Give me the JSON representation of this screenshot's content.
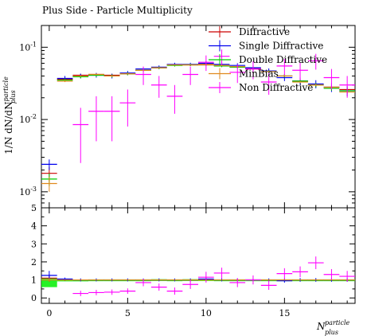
{
  "chart_data": [
    {
      "type": "line",
      "panel": "main",
      "title": "Plus Side - Particle Multiplicity",
      "ylabel": "1/N dN/dN_plus^particle",
      "xlabel": "",
      "yscale": "log",
      "xlim": [
        -0.5,
        19.5
      ],
      "ylim": [
        0.0006,
        0.2
      ],
      "y_ticks": [
        0.001,
        0.01,
        0.1
      ],
      "y_tick_labels": [
        "10^-3",
        "10^-2",
        "10^-1"
      ],
      "legend_position": "top-right",
      "x": [
        0,
        1,
        2,
        3,
        4,
        5,
        6,
        7,
        8,
        9,
        10,
        11,
        12,
        13,
        14,
        15,
        16,
        17,
        18,
        19
      ],
      "series": [
        {
          "name": "Diffractive",
          "color": "#cc0000",
          "values": [
            0.0018,
            0.036,
            0.041,
            0.042,
            0.041,
            0.043,
            0.048,
            0.052,
            0.057,
            0.057,
            0.058,
            0.056,
            0.054,
            0.051,
            0.047,
            0.04,
            0.034,
            0.03,
            0.028,
            0.026
          ],
          "errors": [
            0.0004,
            0.002,
            0.002,
            0.002,
            0.002,
            0.002,
            0.002,
            0.002,
            0.002,
            0.002,
            0.002,
            0.002,
            0.002,
            0.002,
            0.002,
            0.002,
            0.002,
            0.002,
            0.002,
            0.002
          ]
        },
        {
          "name": "Single Diffractive",
          "color": "#0000ee",
          "values": [
            0.0024,
            0.037,
            0.04,
            0.041,
            0.04,
            0.044,
            0.05,
            0.053,
            0.058,
            0.058,
            0.06,
            0.058,
            0.056,
            0.052,
            0.047,
            0.038,
            0.034,
            0.031,
            0.028,
            0.025
          ],
          "errors": [
            0.0004,
            0.003,
            0.003,
            0.003,
            0.003,
            0.003,
            0.003,
            0.003,
            0.003,
            0.003,
            0.004,
            0.004,
            0.004,
            0.004,
            0.004,
            0.004,
            0.004,
            0.004,
            0.004,
            0.004
          ]
        },
        {
          "name": "Double Diffractive",
          "color": "#00cc00",
          "values": [
            0.0015,
            0.035,
            0.039,
            0.041,
            0.04,
            0.043,
            0.048,
            0.052,
            0.056,
            0.057,
            0.057,
            0.055,
            0.053,
            0.05,
            0.046,
            0.04,
            0.034,
            0.03,
            0.027,
            0.025
          ],
          "errors": [
            0.0003,
            0.002,
            0.002,
            0.002,
            0.002,
            0.002,
            0.002,
            0.002,
            0.002,
            0.002,
            0.002,
            0.002,
            0.002,
            0.002,
            0.002,
            0.002,
            0.002,
            0.002,
            0.002,
            0.002
          ]
        },
        {
          "name": "MinBias",
          "color": "#e08a1e",
          "values": [
            0.0013,
            0.034,
            0.04,
            0.042,
            0.04,
            0.043,
            0.048,
            0.052,
            0.057,
            0.057,
            0.057,
            0.056,
            0.054,
            0.05,
            0.046,
            0.04,
            0.033,
            0.03,
            0.028,
            0.024
          ],
          "errors": [
            0.0003,
            0.001,
            0.001,
            0.001,
            0.001,
            0.001,
            0.001,
            0.001,
            0.001,
            0.001,
            0.001,
            0.001,
            0.001,
            0.001,
            0.001,
            0.001,
            0.001,
            0.001,
            0.001,
            0.001
          ]
        },
        {
          "name": "Non Diffractive",
          "color": "#ff00ff",
          "values": [
            null,
            null,
            0.0085,
            0.013,
            0.013,
            0.017,
            0.042,
            0.03,
            0.021,
            0.042,
            0.062,
            0.075,
            0.045,
            0.05,
            0.033,
            0.055,
            0.048,
            0.065,
            0.038,
            0.03
          ],
          "errors": [
            null,
            null,
            0.006,
            0.008,
            0.008,
            0.009,
            0.012,
            0.01,
            0.009,
            0.012,
            0.015,
            0.018,
            0.013,
            0.014,
            0.011,
            0.014,
            0.013,
            0.016,
            0.012,
            0.01
          ]
        }
      ]
    },
    {
      "type": "line",
      "panel": "ratio",
      "xlabel": "N_plus^particle",
      "ylabel": "",
      "xlim": [
        -0.5,
        19.5
      ],
      "ylim": [
        -0.3,
        5.0
      ],
      "x_ticks": [
        0,
        5,
        10,
        15
      ],
      "y_ticks": [
        0,
        1,
        2,
        3,
        4,
        5
      ],
      "x": [
        0,
        1,
        2,
        3,
        4,
        5,
        6,
        7,
        8,
        9,
        10,
        11,
        12,
        13,
        14,
        15,
        16,
        17,
        18,
        19
      ],
      "band": {
        "color": "#00ee00",
        "values": [
          0.85,
          0.97,
          0.97,
          0.98,
          0.98,
          0.98,
          0.98,
          0.99,
          0.98,
          0.99,
          0.99,
          0.98,
          0.98,
          0.98,
          0.98,
          0.98,
          0.98,
          0.98,
          0.98,
          0.98
        ],
        "errors": [
          0.25,
          0.05,
          0.05,
          0.05,
          0.05,
          0.05,
          0.05,
          0.05,
          0.05,
          0.05,
          0.05,
          0.05,
          0.05,
          0.05,
          0.05,
          0.05,
          0.05,
          0.05,
          0.05,
          0.05
        ]
      },
      "series": [
        {
          "name": "Diffractive",
          "color": "#cc0000",
          "values": [
            1.1,
            1.0,
            1.0,
            1.0,
            1.0,
            1.0,
            1.0,
            1.0,
            1.0,
            1.0,
            1.0,
            1.0,
            1.0,
            1.0,
            1.0,
            1.0,
            1.0,
            1.0,
            1.0,
            1.0
          ],
          "errors": [
            0.2,
            0.05,
            0.05,
            0.05,
            0.05,
            0.05,
            0.05,
            0.05,
            0.05,
            0.05,
            0.05,
            0.05,
            0.05,
            0.05,
            0.05,
            0.05,
            0.05,
            0.05,
            0.05,
            0.05
          ]
        },
        {
          "name": "Single Diffractive",
          "color": "#0000ee",
          "values": [
            1.25,
            1.05,
            1.0,
            1.0,
            1.0,
            1.0,
            1.0,
            1.0,
            1.0,
            1.0,
            1.05,
            1.0,
            1.0,
            1.0,
            1.0,
            0.95,
            1.0,
            1.0,
            1.0,
            1.0
          ],
          "errors": [
            0.25,
            0.08,
            0.08,
            0.08,
            0.08,
            0.08,
            0.08,
            0.08,
            0.08,
            0.08,
            0.08,
            0.08,
            0.08,
            0.08,
            0.08,
            0.1,
            0.1,
            0.1,
            0.1,
            0.1
          ]
        },
        {
          "name": "MinBias",
          "color": "#e08a1e",
          "values": [
            1.0,
            1.0,
            1.0,
            1.0,
            1.0,
            1.0,
            1.0,
            1.0,
            1.0,
            1.0,
            1.0,
            1.0,
            1.0,
            1.0,
            1.0,
            1.0,
            1.0,
            1.0,
            1.0,
            1.0
          ],
          "errors": [
            0.1,
            0.02,
            0.02,
            0.02,
            0.02,
            0.02,
            0.02,
            0.02,
            0.02,
            0.02,
            0.02,
            0.02,
            0.02,
            0.02,
            0.02,
            0.02,
            0.02,
            0.02,
            0.02,
            0.02
          ]
        },
        {
          "name": "Non Diffractive",
          "color": "#ff00ff",
          "values": [
            null,
            null,
            0.25,
            0.3,
            0.32,
            0.38,
            0.85,
            0.6,
            0.38,
            0.75,
            1.15,
            1.38,
            0.85,
            1.0,
            0.7,
            1.35,
            1.45,
            1.95,
            1.3,
            1.2
          ],
          "errors": [
            null,
            null,
            0.15,
            0.15,
            0.15,
            0.15,
            0.2,
            0.2,
            0.2,
            0.25,
            0.3,
            0.3,
            0.25,
            0.25,
            0.25,
            0.3,
            0.3,
            0.35,
            0.3,
            0.3
          ]
        }
      ]
    }
  ]
}
